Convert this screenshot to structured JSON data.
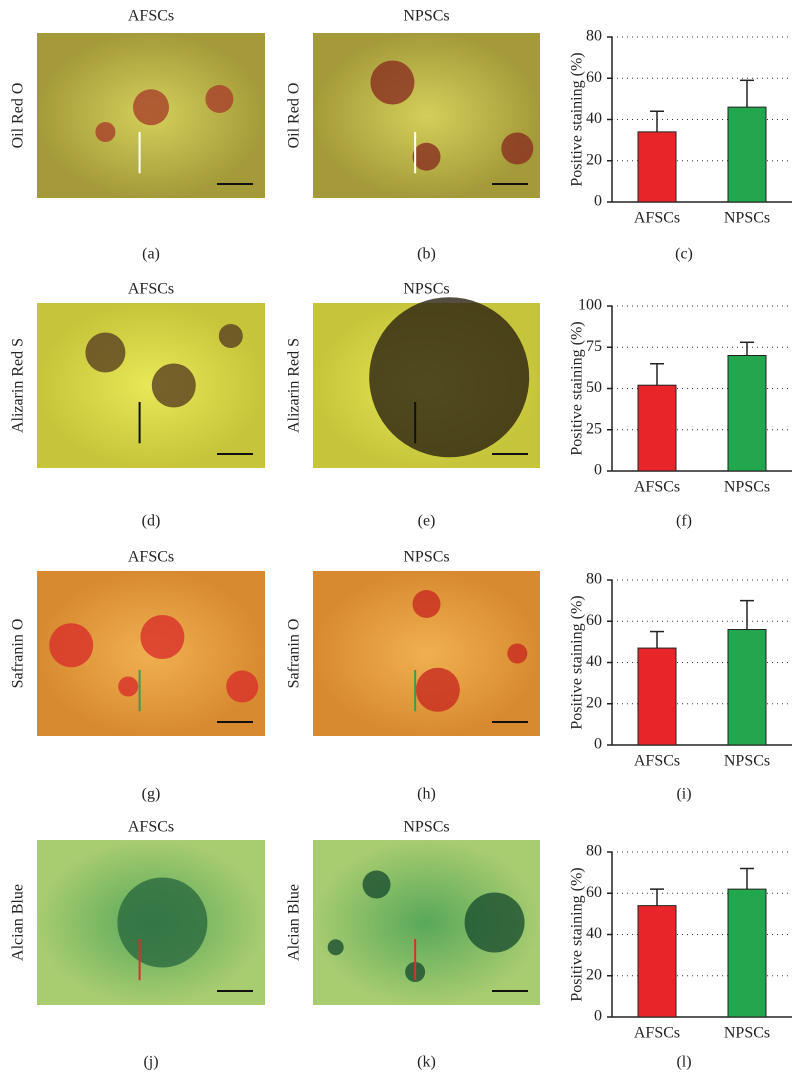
{
  "panels": [
    {
      "row_label": "Oil Red O",
      "titles": [
        "AFSCs",
        "NPSCs"
      ],
      "letters": [
        "(a)",
        "(b)",
        "(c)"
      ]
    },
    {
      "row_label": "Alizarin Red S",
      "titles": [
        "AFSCs",
        "NPSCs"
      ],
      "letters": [
        "(d)",
        "(e)",
        "(f)"
      ]
    },
    {
      "row_label": "Safranin O",
      "titles": [
        "AFSCs",
        "NPSCs"
      ],
      "letters": [
        "(g)",
        "(h)",
        "(i)"
      ]
    },
    {
      "row_label": "Alcian Blue",
      "titles": [
        "AFSCs",
        "NPSCs"
      ],
      "letters": [
        "(j)",
        "(k)",
        "(l)"
      ]
    }
  ],
  "chart_data": [
    {
      "type": "bar",
      "ylabel": "Positive staining (%)",
      "categories": [
        "AFSCs",
        "NPSCs"
      ],
      "values": [
        34,
        46
      ],
      "errors": [
        10,
        13
      ],
      "colors": [
        "#e8262a",
        "#22a64e"
      ],
      "ylim": [
        0,
        80
      ],
      "yticks": [
        0,
        20,
        40,
        60,
        80
      ],
      "grid": true
    },
    {
      "type": "bar",
      "ylabel": "Positive staining (%)",
      "categories": [
        "AFSCs",
        "NPSCs"
      ],
      "values": [
        52,
        70
      ],
      "errors": [
        13,
        8
      ],
      "colors": [
        "#e8262a",
        "#22a64e"
      ],
      "ylim": [
        0,
        100
      ],
      "yticks": [
        0,
        25,
        50,
        75,
        100
      ],
      "grid": true
    },
    {
      "type": "bar",
      "ylabel": "Positive staining (%)",
      "categories": [
        "AFSCs",
        "NPSCs"
      ],
      "values": [
        47,
        56
      ],
      "errors": [
        8,
        14
      ],
      "colors": [
        "#e8262a",
        "#22a64e"
      ],
      "ylim": [
        0,
        80
      ],
      "yticks": [
        0,
        20,
        40,
        60,
        80
      ],
      "grid": true
    },
    {
      "type": "bar",
      "ylabel": "Positive staining (%)",
      "categories": [
        "AFSCs",
        "NPSCs"
      ],
      "values": [
        54,
        62
      ],
      "errors": [
        8,
        10
      ],
      "colors": [
        "#e8262a",
        "#22a64e"
      ],
      "ylim": [
        0,
        80
      ],
      "yticks": [
        0,
        20,
        40,
        60,
        80
      ],
      "grid": true
    }
  ]
}
